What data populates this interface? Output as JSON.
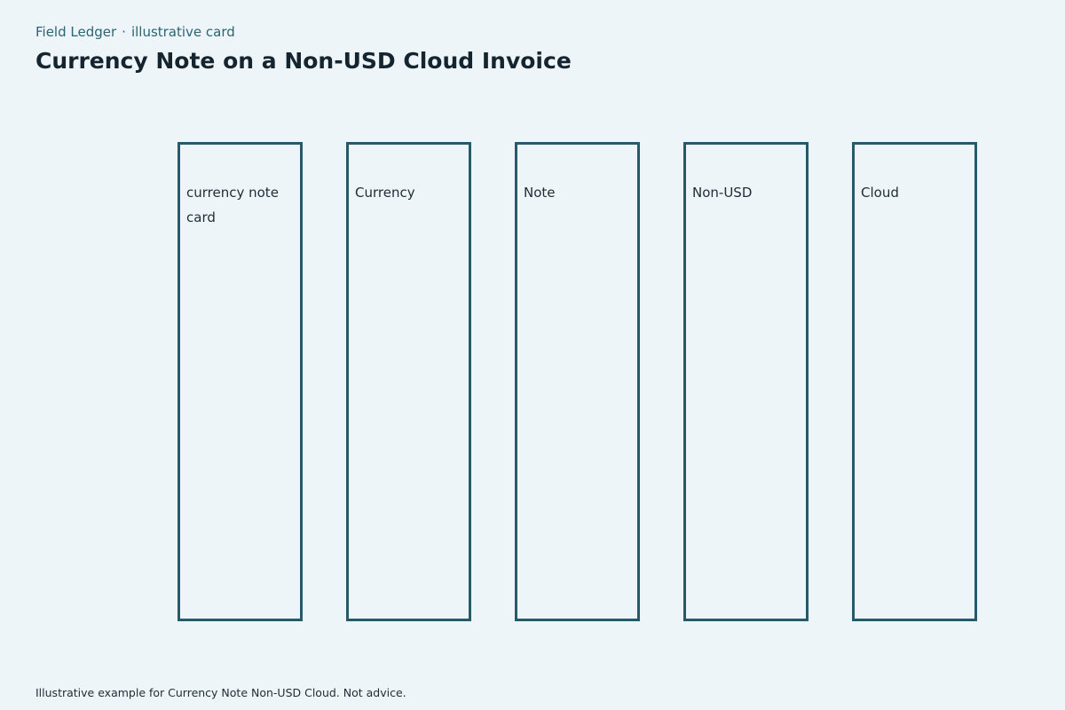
{
  "header": {
    "source": "Field Ledger",
    "separator": "·",
    "tag": "illustrative card",
    "title": "Currency Note on a Non-USD Cloud Invoice"
  },
  "columns": [
    {
      "label": "currency note card"
    },
    {
      "label": "Currency"
    },
    {
      "label": "Note"
    },
    {
      "label": "Non-USD"
    },
    {
      "label": "Cloud"
    }
  ],
  "footer": {
    "note": "Illustrative example for Currency Note Non-USD Cloud. Not advice."
  },
  "colors": {
    "background": "#eef5f9",
    "border": "#265a68",
    "accent_text": "#2b6472"
  }
}
